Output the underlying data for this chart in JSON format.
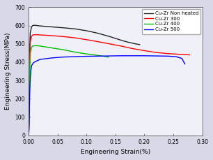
{
  "title": "",
  "xlabel": "Engineering Strain(%)",
  "ylabel": "Engineering Stress(MPa)",
  "xlim": [
    0,
    0.3
  ],
  "ylim": [
    0,
    700
  ],
  "xticks": [
    0.0,
    0.05,
    0.1,
    0.15,
    0.2,
    0.25,
    0.3
  ],
  "yticks": [
    0,
    100,
    200,
    300,
    400,
    500,
    600,
    700
  ],
  "legend_labels": [
    "Cu-Zr Non heated",
    "Cu-Zr 300",
    "Cu-Zr 400",
    "Cu-Zr 500"
  ],
  "fig_facecolor": "#d8d8e8",
  "ax_facecolor": "#f0f0f8",
  "curves": {
    "non_heated": {
      "color": "#222222",
      "points": [
        [
          0.0,
          0
        ],
        [
          0.0005,
          30
        ],
        [
          0.001,
          120
        ],
        [
          0.0015,
          300
        ],
        [
          0.002,
          470
        ],
        [
          0.003,
          560
        ],
        [
          0.005,
          590
        ],
        [
          0.007,
          600
        ],
        [
          0.01,
          602
        ],
        [
          0.015,
          600
        ],
        [
          0.02,
          598
        ],
        [
          0.04,
          593
        ],
        [
          0.06,
          588
        ],
        [
          0.08,
          582
        ],
        [
          0.1,
          572
        ],
        [
          0.12,
          558
        ],
        [
          0.14,
          540
        ],
        [
          0.155,
          525
        ],
        [
          0.165,
          515
        ],
        [
          0.175,
          507
        ],
        [
          0.185,
          500
        ],
        [
          0.192,
          496
        ]
      ]
    },
    "cu_zr_300": {
      "color": "#ff0000",
      "points": [
        [
          0.0,
          0
        ],
        [
          0.0005,
          25
        ],
        [
          0.001,
          100
        ],
        [
          0.0015,
          250
        ],
        [
          0.002,
          420
        ],
        [
          0.003,
          510
        ],
        [
          0.005,
          540
        ],
        [
          0.007,
          548
        ],
        [
          0.01,
          550
        ],
        [
          0.015,
          550
        ],
        [
          0.02,
          549
        ],
        [
          0.04,
          545
        ],
        [
          0.06,
          540
        ],
        [
          0.08,
          533
        ],
        [
          0.1,
          523
        ],
        [
          0.12,
          512
        ],
        [
          0.14,
          500
        ],
        [
          0.16,
          488
        ],
        [
          0.18,
          474
        ],
        [
          0.2,
          463
        ],
        [
          0.22,
          453
        ],
        [
          0.24,
          447
        ],
        [
          0.26,
          443
        ],
        [
          0.278,
          440
        ]
      ]
    },
    "cu_zr_400": {
      "color": "#00bb00",
      "points": [
        [
          0.0,
          0
        ],
        [
          0.0005,
          20
        ],
        [
          0.001,
          90
        ],
        [
          0.0015,
          220
        ],
        [
          0.002,
          370
        ],
        [
          0.003,
          450
        ],
        [
          0.005,
          480
        ],
        [
          0.007,
          488
        ],
        [
          0.01,
          490
        ],
        [
          0.015,
          490
        ],
        [
          0.02,
          488
        ],
        [
          0.04,
          478
        ],
        [
          0.06,
          468
        ],
        [
          0.08,
          455
        ],
        [
          0.1,
          445
        ],
        [
          0.12,
          437
        ],
        [
          0.13,
          432
        ],
        [
          0.138,
          428
        ]
      ]
    },
    "cu_zr_500": {
      "color": "#0000ff",
      "points": [
        [
          0.0,
          0
        ],
        [
          0.0005,
          15
        ],
        [
          0.001,
          60
        ],
        [
          0.0015,
          140
        ],
        [
          0.002,
          230
        ],
        [
          0.003,
          310
        ],
        [
          0.004,
          355
        ],
        [
          0.005,
          375
        ],
        [
          0.006,
          385
        ],
        [
          0.008,
          395
        ],
        [
          0.01,
          400
        ],
        [
          0.015,
          408
        ],
        [
          0.02,
          415
        ],
        [
          0.04,
          423
        ],
        [
          0.06,
          428
        ],
        [
          0.08,
          430
        ],
        [
          0.1,
          432
        ],
        [
          0.12,
          433
        ],
        [
          0.14,
          434
        ],
        [
          0.16,
          435
        ],
        [
          0.18,
          435
        ],
        [
          0.2,
          435
        ],
        [
          0.22,
          434
        ],
        [
          0.24,
          433
        ],
        [
          0.255,
          430
        ],
        [
          0.265,
          420
        ],
        [
          0.27,
          390
        ]
      ]
    }
  }
}
